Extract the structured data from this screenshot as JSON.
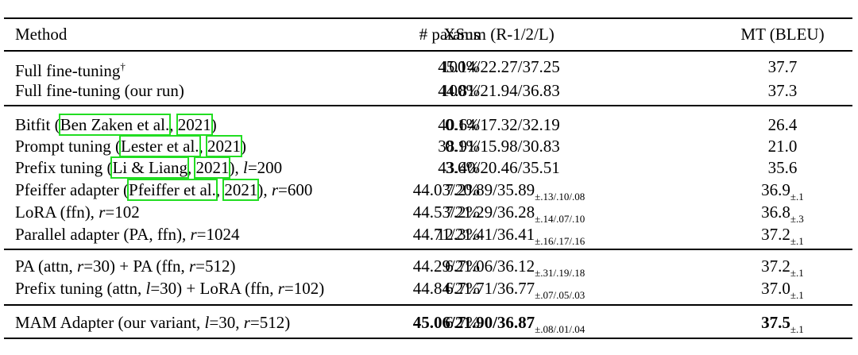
{
  "columns": [
    "Method",
    "# params",
    "XSum (R-1/2/L)",
    "MT (BLEU)"
  ],
  "groups": [
    [
      {
        "method": [
          {
            "t": "Full fine-tuning"
          },
          {
            "t": "†",
            "sup": true
          }
        ],
        "params": "100%",
        "xsum": "45.14/22.27/37.25",
        "xsum_sd": "",
        "mt": "37.7",
        "mt_sd": ""
      },
      {
        "method": [
          {
            "t": "Full fine-tuning (our run)"
          }
        ],
        "params": "100%",
        "xsum": "44.81/21.94/36.83",
        "xsum_sd": "",
        "mt": "37.3",
        "mt_sd": ""
      }
    ],
    [
      {
        "method": [
          {
            "t": "Bitfit ("
          },
          {
            "t": "Ben Zaken et al.",
            "cite": true
          },
          {
            "t": ", "
          },
          {
            "t": "2021",
            "cite": true
          },
          {
            "t": ")"
          }
        ],
        "params": "0.1%",
        "xsum": "40.64/17.32/32.19",
        "xsum_sd": "",
        "mt": "26.4",
        "mt_sd": ""
      },
      {
        "method": [
          {
            "t": "Prompt tuning ("
          },
          {
            "t": "Lester et al.",
            "cite": true
          },
          {
            "t": ", "
          },
          {
            "t": "2021",
            "cite": true
          },
          {
            "t": ")"
          }
        ],
        "params": "0.1%",
        "xsum": "38.91/15.98/30.83",
        "xsum_sd": "",
        "mt": "21.0",
        "mt_sd": ""
      },
      {
        "method": [
          {
            "t": "Prefix tuning ("
          },
          {
            "t": "Li & Liang",
            "cite": true
          },
          {
            "t": ", "
          },
          {
            "t": "2021",
            "cite": true
          },
          {
            "t": "), "
          },
          {
            "t": "l",
            "i": true
          },
          {
            "t": "=200"
          }
        ],
        "params": "3.6%",
        "xsum": "43.40/20.46/35.51",
        "xsum_sd": "",
        "mt": "35.6",
        "mt_sd": ""
      },
      {
        "method": [
          {
            "t": "Pfeiffer adapter ("
          },
          {
            "t": "Pfeiffer et al.",
            "cite": true
          },
          {
            "t": ", "
          },
          {
            "t": "2021",
            "cite": true
          },
          {
            "t": "), "
          },
          {
            "t": "r",
            "i": true
          },
          {
            "t": "=600"
          }
        ],
        "params": "7.2%",
        "xsum": "44.03/20.89/35.89",
        "xsum_sd": "±.13/.10/.08",
        "mt": "36.9",
        "mt_sd": "±.1"
      },
      {
        "method": [
          {
            "t": "LoRA (ffn), "
          },
          {
            "t": "r",
            "i": true
          },
          {
            "t": "=102"
          }
        ],
        "params": "7.2%",
        "xsum": "44.53/21.29/36.28",
        "xsum_sd": "±.14/.07/.10",
        "mt": "36.8",
        "mt_sd": "±.3"
      },
      {
        "method": [
          {
            "t": "Parallel adapter (PA, ffn), "
          },
          {
            "t": "r",
            "i": true
          },
          {
            "t": "=1024"
          }
        ],
        "params": "12.3%",
        "xsum": "44.71/21.41/36.41",
        "xsum_sd": "±.16/.17/.16",
        "mt": "37.2",
        "mt_sd": "±.1"
      }
    ],
    [
      {
        "method": [
          {
            "t": "PA (attn, "
          },
          {
            "t": "r",
            "i": true
          },
          {
            "t": "=30) + PA (ffn, "
          },
          {
            "t": "r",
            "i": true
          },
          {
            "t": "=512)"
          }
        ],
        "params": "6.7%",
        "xsum": "44.29/21.06/36.12",
        "xsum_sd": "±.31/.19/.18",
        "mt": "37.2",
        "mt_sd": "±.1"
      },
      {
        "method": [
          {
            "t": "Prefix tuning (attn, "
          },
          {
            "t": "l",
            "i": true
          },
          {
            "t": "=30) + LoRA (ffn, "
          },
          {
            "t": "r",
            "i": true
          },
          {
            "t": "=102)"
          }
        ],
        "params": "6.7%",
        "xsum": "44.84/21.71/36.77",
        "xsum_sd": "±.07/.05/.03",
        "mt": "37.0",
        "mt_sd": "±.1"
      }
    ],
    [
      {
        "method": [
          {
            "t": "MAM Adapter (our variant, "
          },
          {
            "t": "l",
            "i": true
          },
          {
            "t": "=30, "
          },
          {
            "t": "r",
            "i": true
          },
          {
            "t": "=512)"
          }
        ],
        "params": "6.7%",
        "xsum": "45.06/21.90/36.87",
        "xsum_sd": "±.08/.01/.04",
        "mt": "37.5",
        "mt_sd": "±.1",
        "bold": true
      }
    ]
  ]
}
